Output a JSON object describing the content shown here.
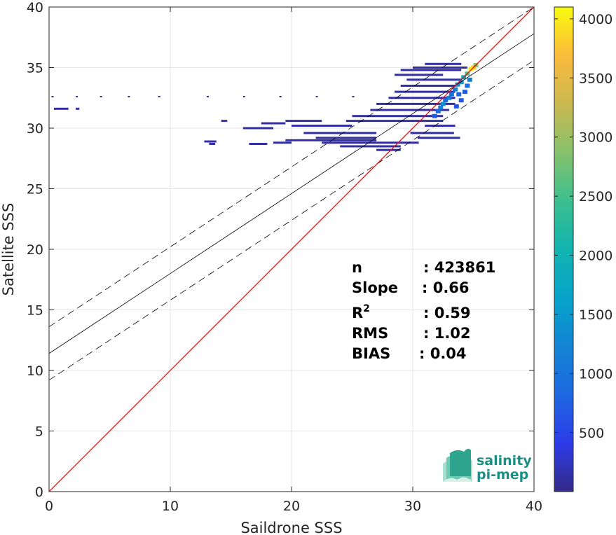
{
  "chart_data": {
    "type": "heatmap",
    "xlabel": "Saildrone SSS",
    "ylabel": "Satellite SSS",
    "xlim": [
      0,
      40
    ],
    "ylim": [
      0,
      40
    ],
    "x_ticks": [
      "0",
      "10",
      "20",
      "30",
      "40"
    ],
    "y_ticks": [
      "0",
      "5",
      "10",
      "15",
      "20",
      "25",
      "30",
      "35",
      "40"
    ],
    "grid": true,
    "colorbar": {
      "ticks": [
        "500",
        "1000",
        "1500",
        "2000",
        "2500",
        "3000",
        "3500",
        "4000"
      ],
      "tick_values": [
        500,
        1000,
        1500,
        2000,
        2500,
        3000,
        3500,
        4000
      ],
      "range": [
        1,
        4100
      ]
    },
    "lines": {
      "identity": {
        "color": "#ff0000",
        "slope": 1,
        "intercept": 0
      },
      "fit": {
        "color": "#000000",
        "slope": 0.66,
        "intercept": 11.4
      },
      "fit_upper": {
        "color": "#000000",
        "style": "dashed",
        "slope": 0.66,
        "intercept": 13.6
      },
      "fit_lower": {
        "color": "#000000",
        "style": "dashed",
        "slope": 0.66,
        "intercept": 9.2
      }
    },
    "stats": [
      {
        "label": "n",
        "value": ": 423861"
      },
      {
        "label": "Slope",
        "value": ": 0.66"
      },
      {
        "label": "R",
        "sup": "2",
        "value": ": 0.59"
      },
      {
        "label": "RMS",
        "value": ": 1.02"
      },
      {
        "label": "BIAS",
        "value": ": 0.04"
      }
    ],
    "density_cells": [
      {
        "x": 35.0,
        "y": 35.0,
        "count": 3800
      },
      {
        "x": 34.8,
        "y": 34.9,
        "count": 4000
      },
      {
        "x": 35.2,
        "y": 35.2,
        "count": 2900
      },
      {
        "x": 34.5,
        "y": 34.5,
        "count": 2600
      },
      {
        "x": 34.2,
        "y": 34.2,
        "count": 1900
      },
      {
        "x": 34.0,
        "y": 33.8,
        "count": 1500
      },
      {
        "x": 33.7,
        "y": 33.6,
        "count": 1300
      },
      {
        "x": 33.5,
        "y": 33.2,
        "count": 1200
      },
      {
        "x": 33.2,
        "y": 32.8,
        "count": 1000
      },
      {
        "x": 33.0,
        "y": 32.5,
        "count": 1100
      },
      {
        "x": 32.7,
        "y": 32.3,
        "count": 900
      },
      {
        "x": 32.5,
        "y": 32.0,
        "count": 1400
      },
      {
        "x": 32.3,
        "y": 31.7,
        "count": 1100
      },
      {
        "x": 32.1,
        "y": 31.4,
        "count": 800
      },
      {
        "x": 31.8,
        "y": 31.0,
        "count": 700
      },
      {
        "x": 33.8,
        "y": 32.8,
        "count": 800
      },
      {
        "x": 34.0,
        "y": 32.3,
        "count": 700
      },
      {
        "x": 33.6,
        "y": 31.8,
        "count": 650
      },
      {
        "x": 34.3,
        "y": 33.0,
        "count": 700
      },
      {
        "x": 34.5,
        "y": 33.5,
        "count": 900
      },
      {
        "x": 34.7,
        "y": 34.0,
        "count": 1200
      }
    ],
    "scatter_cells": [
      {
        "x": 0.4,
        "y": 31.6,
        "w": 1.2
      },
      {
        "x": 2.2,
        "y": 31.6,
        "w": 0.3
      },
      {
        "x": 14.2,
        "y": 30.6,
        "w": 0.5
      },
      {
        "x": 16.0,
        "y": 30.0,
        "w": 2.5
      },
      {
        "x": 17.5,
        "y": 30.4,
        "w": 2.0
      },
      {
        "x": 19.5,
        "y": 30.6,
        "w": 3.0
      },
      {
        "x": 20.0,
        "y": 30.2,
        "w": 5.0
      },
      {
        "x": 21.0,
        "y": 29.6,
        "w": 6.0
      },
      {
        "x": 22.0,
        "y": 29.2,
        "w": 5.0
      },
      {
        "x": 19.5,
        "y": 29.0,
        "w": 7.5
      },
      {
        "x": 22.5,
        "y": 28.8,
        "w": 8.0
      },
      {
        "x": 12.8,
        "y": 28.9,
        "w": 1.0
      },
      {
        "x": 13.2,
        "y": 28.7,
        "w": 0.5
      },
      {
        "x": 16.5,
        "y": 28.7,
        "w": 1.5
      },
      {
        "x": 18.5,
        "y": 28.8,
        "w": 1.5
      },
      {
        "x": 24.0,
        "y": 28.5,
        "w": 5.0
      },
      {
        "x": 27.0,
        "y": 28.2,
        "w": 2.0
      },
      {
        "x": 24.5,
        "y": 30.6,
        "w": 8.0
      },
      {
        "x": 25.0,
        "y": 31.0,
        "w": 7.5
      },
      {
        "x": 26.5,
        "y": 31.5,
        "w": 6.5
      },
      {
        "x": 27.0,
        "y": 32.0,
        "w": 6.5
      },
      {
        "x": 28.0,
        "y": 32.5,
        "w": 5.5
      },
      {
        "x": 28.5,
        "y": 33.0,
        "w": 5.0
      },
      {
        "x": 29.0,
        "y": 33.5,
        "w": 4.5
      },
      {
        "x": 29.5,
        "y": 34.0,
        "w": 4.5
      },
      {
        "x": 28.5,
        "y": 34.4,
        "w": 4.0
      },
      {
        "x": 29.0,
        "y": 34.8,
        "w": 5.0
      },
      {
        "x": 30.0,
        "y": 35.0,
        "w": 4.5
      },
      {
        "x": 31.0,
        "y": 35.3,
        "w": 3.0
      },
      {
        "x": 29.8,
        "y": 29.6,
        "w": 3.6
      },
      {
        "x": 30.4,
        "y": 29.2,
        "w": 3.5
      },
      {
        "x": 31.0,
        "y": 30.2,
        "w": 2.5
      }
    ],
    "row_dots": [
      {
        "y": 32.6,
        "xs": [
          0.2,
          2.2,
          4.2,
          6.5,
          9.0,
          13.0,
          16.0,
          19.0,
          22.0,
          25.0
        ]
      }
    ],
    "logo": {
      "line1": "salinity",
      "line2": "pi-mep"
    }
  }
}
